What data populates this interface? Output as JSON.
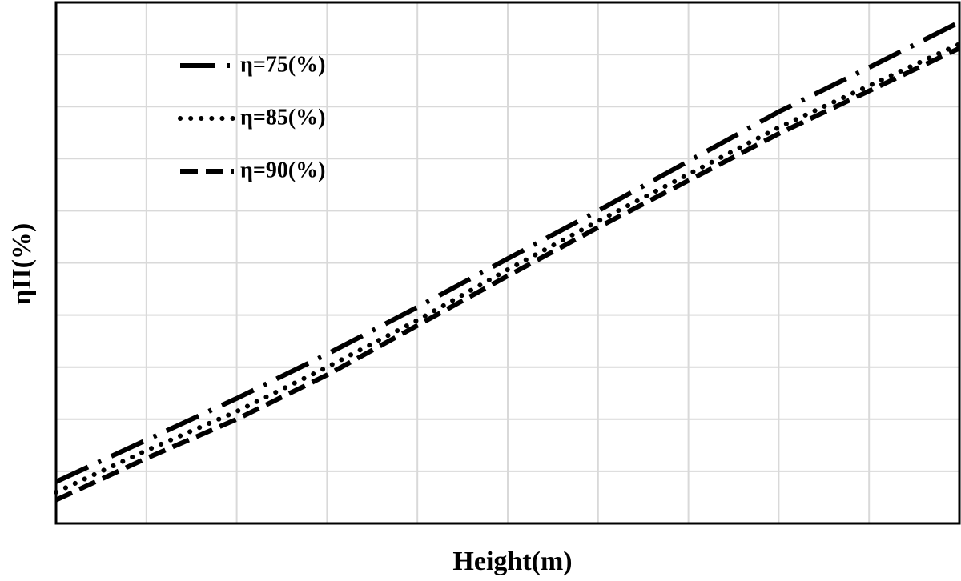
{
  "chart_data": {
    "type": "line",
    "x_label": "Height(m)",
    "y_label": "ηII(%)",
    "x": [
      0,
      1,
      2,
      3,
      4,
      5,
      6,
      7,
      8,
      9,
      10
    ],
    "series": [
      {
        "name": "η=75(%)",
        "color": "#000000",
        "dash": "dashdot",
        "values": [
          0.8,
          1.6,
          2.4,
          3.25,
          4.15,
          5.08,
          6.0,
          6.95,
          7.9,
          8.75,
          9.62
        ]
      },
      {
        "name": "η=85(%)",
        "color": "#000000",
        "dash": "dotted",
        "values": [
          0.6,
          1.4,
          2.15,
          3.0,
          3.9,
          4.87,
          5.8,
          6.7,
          7.6,
          8.4,
          9.2
        ]
      },
      {
        "name": "η=90(%)",
        "color": "#000000",
        "dash": "dashed",
        "values": [
          0.45,
          1.25,
          2.0,
          2.85,
          3.8,
          4.75,
          5.68,
          6.58,
          7.48,
          8.3,
          9.12
        ]
      }
    ],
    "xlim": [
      0,
      10
    ],
    "ylim": [
      0,
      10
    ],
    "xticks": [
      1,
      2,
      3,
      4,
      5,
      6,
      7,
      8,
      9
    ],
    "yticks": [
      1,
      2,
      3,
      4,
      5,
      6,
      7,
      8,
      9
    ],
    "grid": true,
    "legend": "upper left"
  }
}
